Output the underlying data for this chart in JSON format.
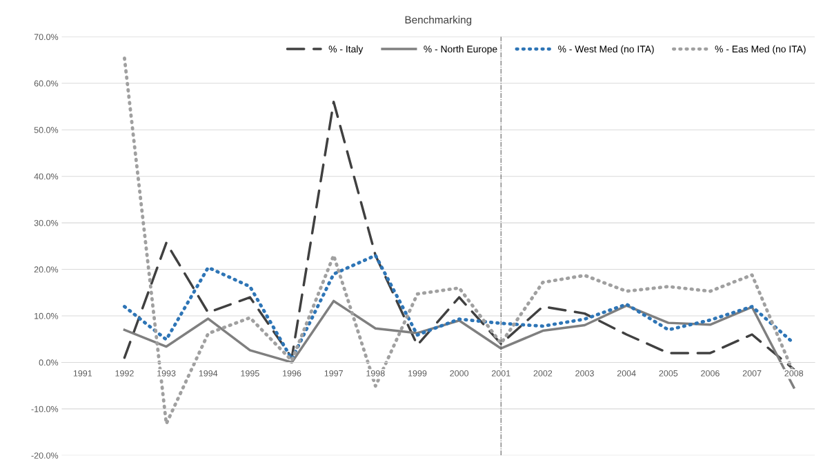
{
  "chart_data": {
    "type": "line",
    "title": "Benchmarking",
    "categories": [
      "1991",
      "1992",
      "1993",
      "1994",
      "1995",
      "1996",
      "1997",
      "1998",
      "1999",
      "2000",
      "2001",
      "2002",
      "2003",
      "2004",
      "2005",
      "2006",
      "2007",
      "2008"
    ],
    "series": [
      {
        "name": "% - Italy",
        "color": "#404040",
        "line_style": "dashed",
        "values": [
          null,
          1.0,
          25.7,
          10.7,
          14.0,
          1.0,
          56.0,
          23.0,
          3.7,
          14.0,
          4.0,
          12.0,
          10.5,
          6.0,
          2.0,
          2.0,
          6.0,
          -1.5
        ]
      },
      {
        "name": "% - North Europe",
        "color": "#7f7f7f",
        "line_style": "solid",
        "values": [
          null,
          7.0,
          3.4,
          9.4,
          2.6,
          0.0,
          13.2,
          7.3,
          6.3,
          9.0,
          3.0,
          6.8,
          8.0,
          12.2,
          8.5,
          8.1,
          11.9,
          -5.4
        ]
      },
      {
        "name": "% - West Med (no ITA)",
        "color": "#2e75b6",
        "line_style": "dotted",
        "values": [
          null,
          12.0,
          4.9,
          20.4,
          16.3,
          0.7,
          19.0,
          23.0,
          5.9,
          9.3,
          8.4,
          7.8,
          9.3,
          12.5,
          7.0,
          9.1,
          12.0,
          4.1
        ]
      },
      {
        "name": "% - Eas Med (no ITA)",
        "color": "#a0a0a0",
        "line_style": "dotted",
        "values": [
          null,
          65.4,
          -13.2,
          6.2,
          9.6,
          0.4,
          23.0,
          -5.1,
          14.7,
          16.0,
          4.1,
          17.2,
          18.7,
          15.3,
          16.3,
          15.3,
          18.8,
          -2.4
        ]
      }
    ],
    "ylim": [
      -20,
      70
    ],
    "yticks": [
      {
        "value": -20,
        "label": "-20.0%"
      },
      {
        "value": -10,
        "label": "-10.0%"
      },
      {
        "value": 0,
        "label": "0.0%"
      },
      {
        "value": 10,
        "label": "10.0%"
      },
      {
        "value": 20,
        "label": "20.0%"
      },
      {
        "value": 30,
        "label": "30.0%"
      },
      {
        "value": 40,
        "label": "40.0%"
      },
      {
        "value": 50,
        "label": "50.0%"
      },
      {
        "value": 60,
        "label": "60.0%"
      },
      {
        "value": 70,
        "label": "70.0%"
      }
    ],
    "ref_lines": [
      {
        "axis": "x",
        "value": "2001",
        "color": "#606060",
        "line_style": "dashdot"
      }
    ],
    "grid": "y",
    "legend": "top right",
    "marker": "none"
  }
}
